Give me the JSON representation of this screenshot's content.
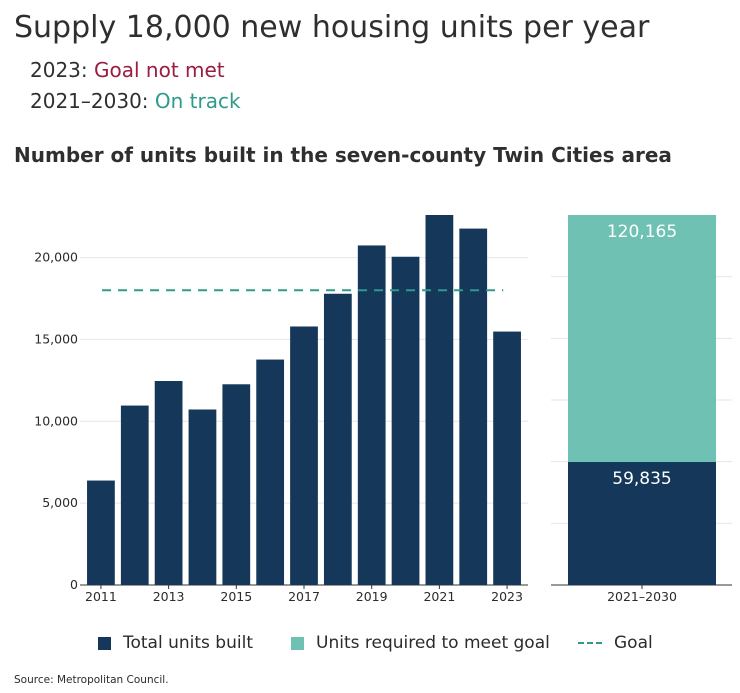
{
  "header": {
    "title": "Supply 18,000 new housing units per year",
    "status_1_label": "2023:",
    "status_1_value": "Goal not met",
    "status_2_label": "2021–2030:",
    "status_2_value": "On track",
    "subtitle": "Number of units built in the seven-county Twin Cities area"
  },
  "colors": {
    "built": "#14375a",
    "required": "#6fc2b3",
    "goal": "#2e9a8c",
    "miss": "#9b1b41"
  },
  "chart_data": [
    {
      "type": "bar",
      "x": [
        2011,
        2012,
        2013,
        2014,
        2015,
        2016,
        2017,
        2018,
        2019,
        2020,
        2021,
        2022,
        2023
      ],
      "series": [
        {
          "name": "Total units built",
          "values": [
            6380,
            10960,
            12460,
            10720,
            12260,
            13770,
            15790,
            17790,
            20740,
            20050,
            22600,
            21770,
            15480
          ]
        }
      ],
      "goal": {
        "name": "Goal",
        "value": 18000
      },
      "x_tick_labels": [
        "2011",
        "2013",
        "2015",
        "2017",
        "2019",
        "2021",
        "2023"
      ],
      "y_tick_labels": [
        "0",
        "5,000",
        "10,000",
        "15,000",
        "20,000"
      ],
      "ylim": [
        0,
        22600
      ],
      "grid": true
    },
    {
      "type": "bar",
      "categories": [
        "2021–2030"
      ],
      "stacked": true,
      "series": [
        {
          "name": "Total units built",
          "values": [
            59835
          ],
          "label": "59,835"
        },
        {
          "name": "Units required to meet goal",
          "values": [
            120165
          ],
          "label": "120,165"
        }
      ],
      "ylim": [
        0,
        180000
      ],
      "grid": true
    }
  ],
  "legend": {
    "built": "Total units built",
    "required": "Units required to meet goal",
    "goal": "Goal"
  },
  "source": "Source: Metropolitan Council."
}
